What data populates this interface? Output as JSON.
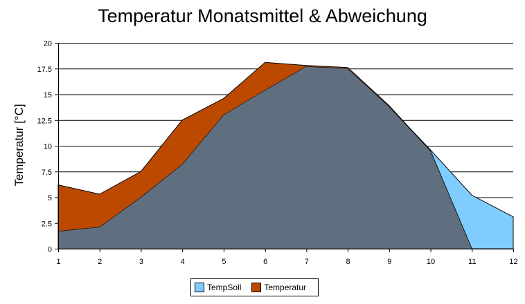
{
  "chart_data": {
    "type": "area",
    "title": "Temperatur Monatsmittel & Abweichung",
    "xlabel": "",
    "ylabel": "Temperatur [°C]",
    "x": [
      1,
      2,
      3,
      4,
      5,
      6,
      7,
      8,
      9,
      10,
      11,
      12
    ],
    "ylim": [
      0,
      20
    ],
    "yticks": [
      "0",
      "2.5",
      "5",
      "7.5",
      "10",
      "12.5",
      "15",
      "17.5",
      "20"
    ],
    "grid": true,
    "legend_position": "bottom",
    "series": [
      {
        "name": "TempSoll",
        "color": "#80ccff",
        "values": [
          1.7,
          2.1,
          5.0,
          8.2,
          13.0,
          15.4,
          17.7,
          17.5,
          13.8,
          9.6,
          5.2,
          3.1
        ]
      },
      {
        "name": "Temperatur",
        "color": "#bb4a00",
        "values": [
          6.2,
          5.3,
          7.5,
          12.5,
          14.6,
          18.1,
          17.8,
          17.6,
          13.9,
          9.5,
          0,
          null
        ]
      }
    ],
    "overlap_color": "#5f6f7f"
  },
  "legend": {
    "items": [
      {
        "label": "TempSoll",
        "color": "#80ccff"
      },
      {
        "label": "Temperatur",
        "color": "#bb4a00"
      }
    ]
  }
}
